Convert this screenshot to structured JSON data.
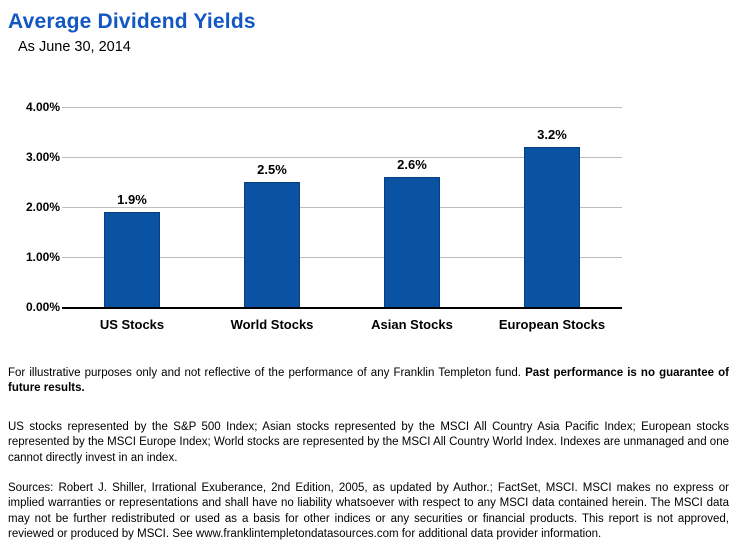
{
  "header": {
    "title": "Average Dividend Yields",
    "subtitle": "As June 30, 2014"
  },
  "chart_data": {
    "type": "bar",
    "title": "Average Dividend Yields",
    "subtitle": "As June 30, 2014",
    "categories": [
      "US Stocks",
      "World Stocks",
      "Asian Stocks",
      "European Stocks"
    ],
    "values": [
      1.9,
      2.5,
      2.6,
      3.2
    ],
    "data_labels": [
      "1.9%",
      "2.5%",
      "2.6%",
      "3.2%"
    ],
    "xlabel": "",
    "ylabel": "",
    "ylim": [
      0,
      4
    ],
    "yticks": [
      {
        "label": "0.00%",
        "value": 0
      },
      {
        "label": "1.00%",
        "value": 1
      },
      {
        "label": "2.00%",
        "value": 2
      },
      {
        "label": "3.00%",
        "value": 3
      },
      {
        "label": "4.00%",
        "value": 4
      }
    ],
    "grid": "horizontal",
    "legend": "none",
    "bar_color": "#0A52A2",
    "bar_border_color": "#08407F",
    "gridline_color": "#BDBDBD",
    "axis_color": "#000000",
    "title_color": "#1257C2"
  },
  "footnotes": {
    "illustrative_normal": "For illustrative purposes only and not reflective of the performance of any Franklin Templeton fund. ",
    "illustrative_bold": "Past performance is no guarantee of future results.",
    "indexes": "US stocks represented by the S&P 500 Index; Asian stocks represented by the MSCI All Country Asia Pacific Index; European stocks represented by the MSCI Europe Index; World stocks are represented by the MSCI All Country World Index. Indexes are unmanaged and one cannot directly invest in an index.",
    "sources": "Sources: Robert J. Shiller, Irrational Exuberance, 2nd Edition, 2005, as updated by Author.; FactSet, MSCI. MSCI makes no express or implied warranties or representations and shall have no liability whatsoever with respect to any MSCI data contained herein. The MSCI data may not be further redistributed or used as a basis for other indices or any securities or financial products. This report is not approved, reviewed or produced by MSCI. See www.franklintempletondatasources.com for additional data provider information."
  }
}
